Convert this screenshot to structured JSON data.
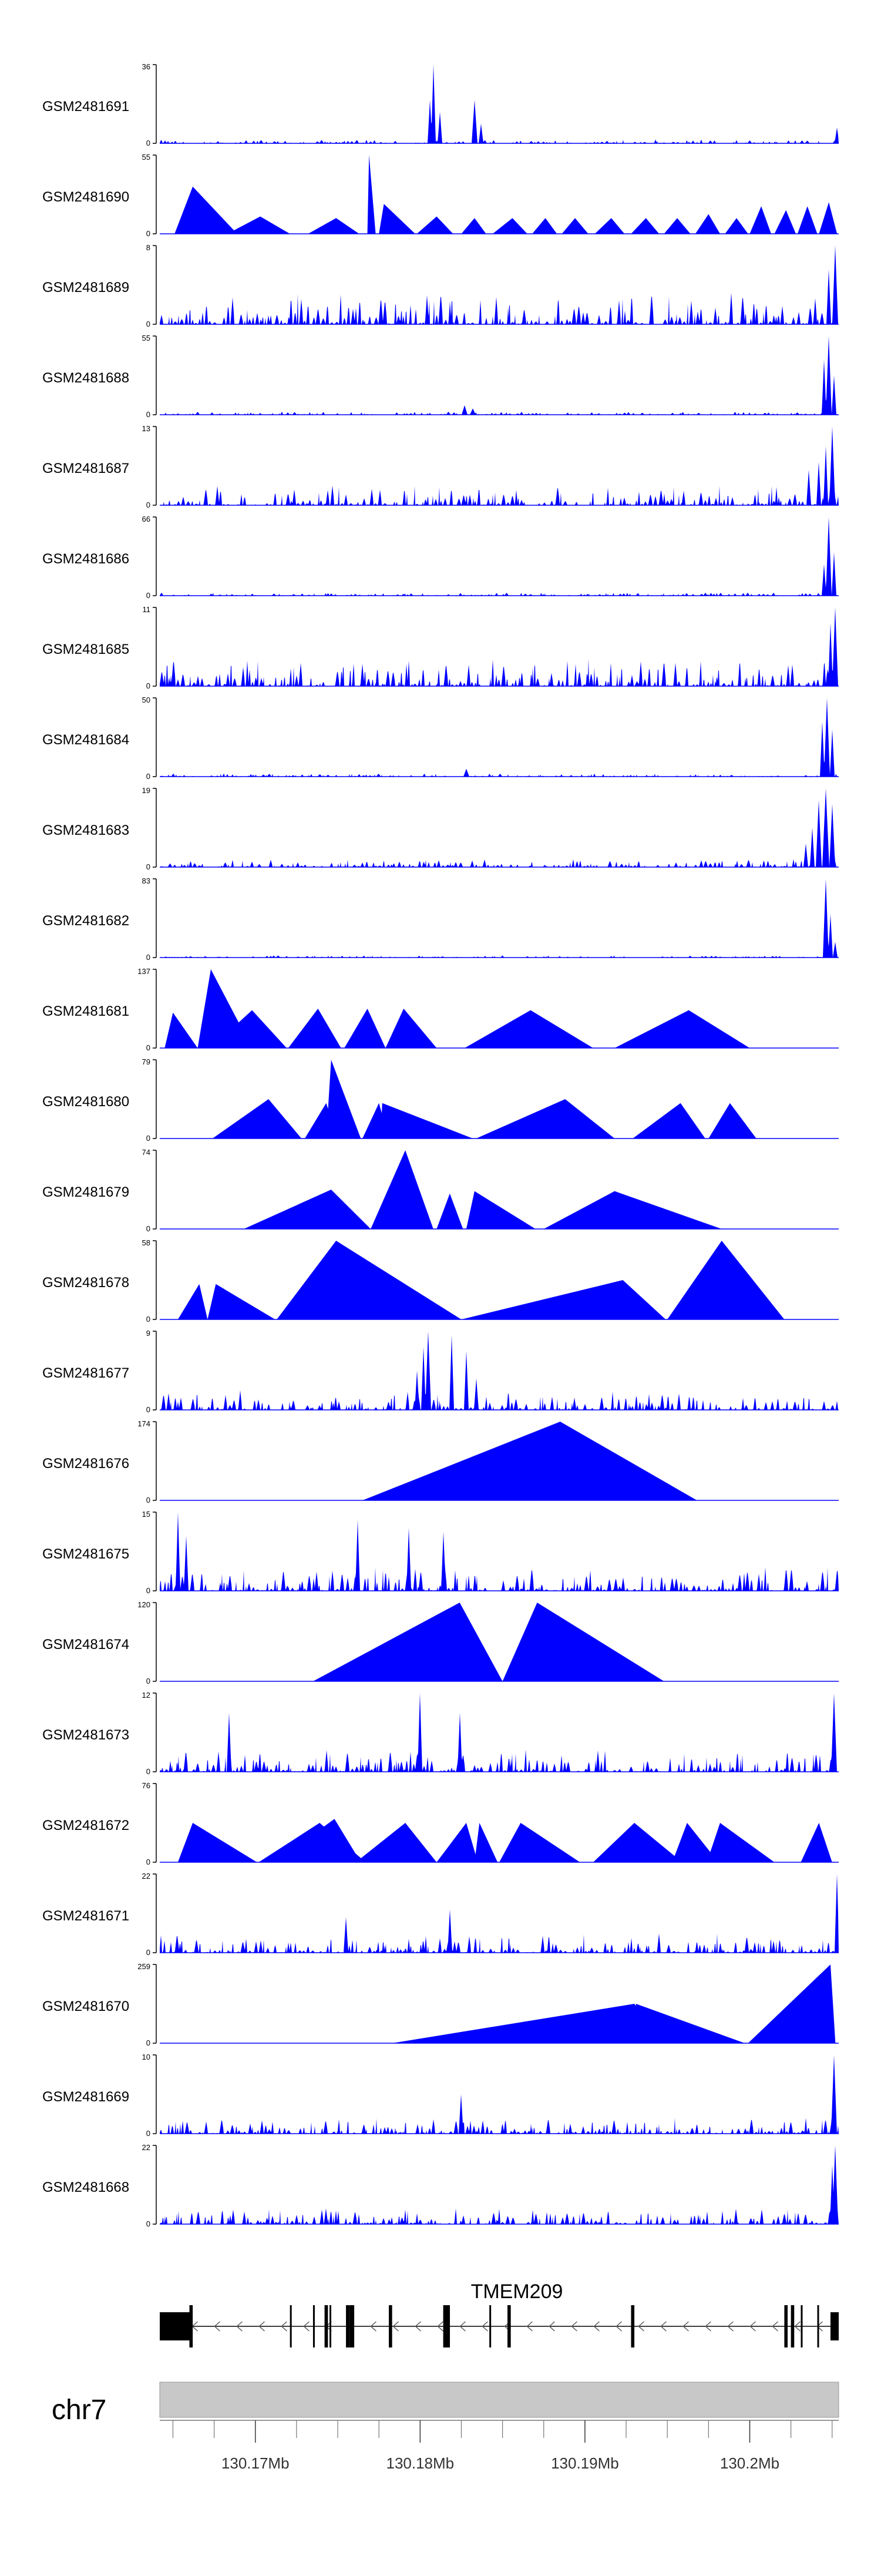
{
  "chart_data": {
    "type": "area",
    "title": "",
    "chromosome": "chr7",
    "gene": {
      "name": "TMEM209",
      "strand": "-",
      "start": 130164500,
      "end": 130205300
    },
    "xlim": [
      130164200,
      130205400
    ],
    "x_ticks": [
      130170000,
      130180000,
      130190000,
      130200000
    ],
    "x_tick_labels": [
      "130.17Mb",
      "130.18Mb",
      "130.19Mb",
      "130.2Mb"
    ],
    "exons": [
      [
        130164200,
        130166000
      ],
      [
        130166000,
        130166200
      ],
      [
        130172100,
        130172200
      ],
      [
        130173500,
        130173600
      ],
      [
        130174200,
        130174300
      ],
      [
        130174300,
        130174400
      ],
      [
        130174500,
        130174600
      ],
      [
        130175500,
        130175700
      ],
      [
        130175700,
        130176000
      ],
      [
        130178100,
        130178300
      ],
      [
        130181400,
        130181700
      ],
      [
        130181700,
        130181800
      ],
      [
        130184200,
        130184300
      ],
      [
        130185300,
        130185500
      ],
      [
        130192800,
        130193000
      ],
      [
        130202100,
        130202300
      ],
      [
        130202500,
        130202700
      ],
      [
        130203100,
        130203200
      ],
      [
        130204100,
        130204200
      ],
      [
        130204900,
        130205400
      ]
    ],
    "tracks": [
      {
        "name": "GSM2481691",
        "ymax": 36,
        "kind": "dense",
        "base": 0.05,
        "peaks": [
          [
            130180800,
            1.0,
            3
          ],
          [
            130180600,
            0.55,
            3
          ],
          [
            130181200,
            0.4,
            3
          ],
          [
            130183300,
            0.55,
            4
          ],
          [
            130183700,
            0.25,
            3
          ],
          [
            130205300,
            0.2,
            3
          ]
        ]
      },
      {
        "name": "GSM2481690",
        "ymax": 55,
        "kind": "sparse",
        "values": [
          [
            130165100,
            130166200,
            130168900,
            0.6
          ],
          [
            130168300,
            130170300,
            130172100,
            0.22
          ],
          [
            130173200,
            130174900,
            130176300,
            0.2
          ],
          [
            130176800,
            130176900,
            130177300,
            1.0
          ],
          [
            130177500,
            130177800,
            130179700,
            0.38
          ],
          [
            130179800,
            130181000,
            130182000,
            0.22
          ],
          [
            130182500,
            130183300,
            130184000,
            0.2
          ],
          [
            130184400,
            130185600,
            130186500,
            0.2
          ],
          [
            130186800,
            130187600,
            130188300,
            0.2
          ],
          [
            130188600,
            130189400,
            130190200,
            0.2
          ],
          [
            130190600,
            130191600,
            130192400,
            0.2
          ],
          [
            130192800,
            130193700,
            130194500,
            0.2
          ],
          [
            130194800,
            130195600,
            130196400,
            0.2
          ],
          [
            130196700,
            130197500,
            130198200,
            0.25
          ],
          [
            130198500,
            130199200,
            130199900,
            0.2
          ],
          [
            130200000,
            130200700,
            130201300,
            0.35
          ],
          [
            130201500,
            130202200,
            130202800,
            0.3
          ],
          [
            130202900,
            130203500,
            130204100,
            0.35
          ],
          [
            130204200,
            130204800,
            130205300,
            0.4
          ]
        ]
      },
      {
        "name": "GSM2481689",
        "ymax": 8,
        "kind": "dense",
        "base": 0.4,
        "peaks": [
          [
            130205200,
            1.0,
            4
          ],
          [
            130204800,
            0.7,
            3
          ]
        ]
      },
      {
        "name": "GSM2481688",
        "ymax": 55,
        "kind": "dense",
        "base": 0.04,
        "peaks": [
          [
            130204800,
            1.0,
            4
          ],
          [
            130204500,
            0.7,
            3
          ],
          [
            130205100,
            0.5,
            3
          ],
          [
            130182700,
            0.12,
            4
          ],
          [
            130183200,
            0.08,
            4
          ]
        ]
      },
      {
        "name": "GSM2481687",
        "ymax": 13,
        "kind": "dense",
        "base": 0.25,
        "peaks": [
          [
            130205000,
            1.0,
            4
          ],
          [
            130204600,
            0.75,
            3
          ],
          [
            130204200,
            0.55,
            3
          ],
          [
            130203600,
            0.45,
            3
          ]
        ]
      },
      {
        "name": "GSM2481686",
        "ymax": 66,
        "kind": "dense",
        "base": 0.04,
        "peaks": [
          [
            130204800,
            1.0,
            4
          ],
          [
            130205100,
            0.55,
            3
          ],
          [
            130204500,
            0.4,
            3
          ]
        ]
      },
      {
        "name": "GSM2481685",
        "ymax": 11,
        "kind": "dense",
        "base": 0.35,
        "peaks": [
          [
            130205200,
            1.0,
            4
          ],
          [
            130204900,
            0.8,
            3
          ]
        ]
      },
      {
        "name": "GSM2481684",
        "ymax": 50,
        "kind": "dense",
        "base": 0.04,
        "peaks": [
          [
            130204700,
            1.0,
            4
          ],
          [
            130204400,
            0.7,
            3
          ],
          [
            130205000,
            0.6,
            3
          ],
          [
            130182800,
            0.1,
            4
          ]
        ]
      },
      {
        "name": "GSM2481683",
        "ymax": 19,
        "kind": "dense",
        "base": 0.1,
        "peaks": [
          [
            130204600,
            1.0,
            5
          ],
          [
            130204200,
            0.85,
            4
          ],
          [
            130205000,
            0.8,
            4
          ],
          [
            130203800,
            0.5,
            3
          ],
          [
            130203400,
            0.3,
            3
          ]
        ]
      },
      {
        "name": "GSM2481682",
        "ymax": 83,
        "kind": "dense",
        "base": 0.03,
        "peaks": [
          [
            130204600,
            1.0,
            4
          ],
          [
            130204900,
            0.55,
            3
          ],
          [
            130205200,
            0.2,
            3
          ]
        ]
      },
      {
        "name": "GSM2481681",
        "ymax": 137,
        "kind": "sparse",
        "values": [
          [
            130164500,
            130165000,
            130166500,
            0.45
          ],
          [
            130166500,
            130167300,
            130169800,
            1.0
          ],
          [
            130167300,
            130169800,
            130171900,
            0.48
          ],
          [
            130172000,
            130173800,
            130175200,
            0.5
          ],
          [
            130175400,
            130176800,
            130177900,
            0.5
          ],
          [
            130177900,
            130179000,
            130181000,
            0.5
          ],
          [
            130182700,
            130186700,
            130190500,
            0.48
          ],
          [
            130191800,
            130196300,
            130200000,
            0.48
          ]
        ]
      },
      {
        "name": "GSM2481680",
        "ymax": 79,
        "kind": "sparse",
        "values": [
          [
            130167400,
            130170800,
            130172800,
            0.5
          ],
          [
            130173000,
            130174300,
            130175000,
            0.45
          ],
          [
            130174300,
            130174600,
            130176400,
            1.0
          ],
          [
            130176500,
            130177500,
            130178100,
            0.45
          ],
          [
            130177600,
            130177700,
            130183200,
            0.45
          ],
          [
            130183400,
            130188800,
            130191800,
            0.5
          ],
          [
            130192900,
            130195800,
            130197300,
            0.45
          ],
          [
            130197500,
            130198800,
            130200400,
            0.45
          ]
        ]
      },
      {
        "name": "GSM2481679",
        "ymax": 74,
        "kind": "sparse",
        "values": [
          [
            130169300,
            130174600,
            130177000,
            0.5
          ],
          [
            130177000,
            130179100,
            130180800,
            1.0
          ],
          [
            130181000,
            130181800,
            130182600,
            0.45
          ],
          [
            130182800,
            130183300,
            130187000,
            0.48
          ],
          [
            130187500,
            130191800,
            130198300,
            0.48
          ]
        ]
      },
      {
        "name": "GSM2481678",
        "ymax": 58,
        "kind": "sparse",
        "values": [
          [
            130165300,
            130166600,
            130167100,
            0.45
          ],
          [
            130167100,
            130167600,
            130171200,
            0.45
          ],
          [
            130171300,
            130174900,
            130182500,
            1.0
          ],
          [
            130182500,
            130192300,
            130194900,
            0.5
          ],
          [
            130195000,
            130198300,
            130202100,
            1.0
          ]
        ]
      },
      {
        "name": "GSM2481677",
        "ymax": 9,
        "kind": "dense",
        "base": 0.25,
        "peaks": [
          [
            130180500,
            1.0,
            4
          ],
          [
            130180200,
            0.8,
            3
          ],
          [
            130181900,
            0.95,
            3
          ],
          [
            130182800,
            0.75,
            3
          ],
          [
            130179800,
            0.5,
            3
          ],
          [
            130183400,
            0.4,
            3
          ]
        ]
      },
      {
        "name": "GSM2481676",
        "ymax": 174,
        "kind": "sparse",
        "values": [
          [
            130176500,
            130188500,
            130196800,
            1.0
          ]
        ]
      },
      {
        "name": "GSM2481675",
        "ymax": 15,
        "kind": "dense",
        "base": 0.3,
        "peaks": [
          [
            130165300,
            1.0,
            3
          ],
          [
            130165800,
            0.7,
            3
          ],
          [
            130176200,
            0.9,
            3
          ],
          [
            130179300,
            0.8,
            3
          ],
          [
            130181400,
            0.75,
            3
          ]
        ]
      },
      {
        "name": "GSM2481674",
        "ymax": 120,
        "kind": "sparse",
        "values": [
          [
            130173500,
            130182400,
            130185000,
            1.0
          ],
          [
            130185000,
            130187100,
            130194800,
            1.0
          ]
        ]
      },
      {
        "name": "GSM2481673",
        "ymax": 12,
        "kind": "dense",
        "base": 0.28,
        "peaks": [
          [
            130180000,
            1.0,
            3
          ],
          [
            130168400,
            0.75,
            3
          ],
          [
            130182400,
            0.75,
            3
          ],
          [
            130205100,
            1.0,
            4
          ]
        ]
      },
      {
        "name": "GSM2481672",
        "ymax": 76,
        "kind": "sparse",
        "values": [
          [
            130165300,
            130166200,
            130170100,
            0.5
          ],
          [
            130170200,
            130173900,
            130176700,
            0.5
          ],
          [
            130171200,
            130174800,
            130176400,
            0.55
          ],
          [
            130176100,
            130179100,
            130181000,
            0.5
          ],
          [
            130181000,
            130182800,
            130183500,
            0.5
          ],
          [
            130183300,
            130183600,
            130184700,
            0.5
          ],
          [
            130184800,
            130186100,
            130189700,
            0.5
          ],
          [
            130190500,
            130193000,
            130195900,
            0.5
          ],
          [
            130195300,
            130196200,
            130198100,
            0.5
          ],
          [
            130197400,
            130198200,
            130201500,
            0.5
          ],
          [
            130203100,
            130204200,
            130205000,
            0.5
          ]
        ]
      },
      {
        "name": "GSM2481671",
        "ymax": 22,
        "kind": "dense",
        "base": 0.25,
        "peaks": [
          [
            130205300,
            1.0,
            3
          ],
          [
            130181800,
            0.55,
            3
          ],
          [
            130175500,
            0.45,
            3
          ]
        ]
      },
      {
        "name": "GSM2481670",
        "ymax": 259,
        "kind": "sparse",
        "values": [
          [
            130178300,
            130193000,
            130195000,
            0.5
          ],
          [
            130193000,
            130193100,
            130199700,
            0.5
          ],
          [
            130199900,
            130204900,
            130205200,
            1.0
          ]
        ]
      },
      {
        "name": "GSM2481669",
        "ymax": 10,
        "kind": "dense",
        "base": 0.2,
        "peaks": [
          [
            130205100,
            1.0,
            4
          ],
          [
            130182500,
            0.5,
            3
          ]
        ]
      },
      {
        "name": "GSM2481668",
        "ymax": 22,
        "kind": "dense",
        "base": 0.2,
        "peaks": [
          [
            130205200,
            1.0,
            4
          ],
          [
            130205000,
            0.75,
            3
          ]
        ]
      }
    ]
  }
}
